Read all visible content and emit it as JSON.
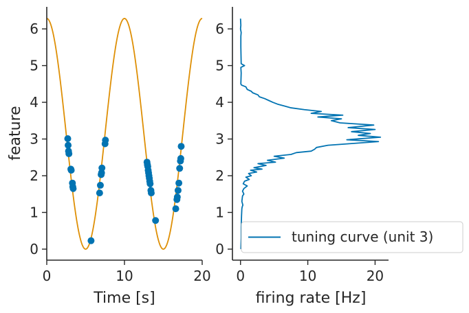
{
  "chart_data": [
    {
      "type": "scatter",
      "xlabel": "Time [s]",
      "ylabel": "feature",
      "xlim": [
        0,
        20
      ],
      "ylim": [
        -0.3,
        6.6
      ],
      "xticks": [
        0,
        10,
        20
      ],
      "yticks": [
        0,
        1,
        2,
        3,
        4,
        5,
        6
      ],
      "grid": false,
      "line_series": {
        "color": "#de8f05",
        "function": "pi*(1+cos(2*pi*t/10))",
        "x_range": [
          0,
          20
        ]
      },
      "scatter_series": {
        "color": "#0173b2",
        "points": [
          [
            2.7,
            3.01
          ],
          [
            2.75,
            2.83
          ],
          [
            2.8,
            2.67
          ],
          [
            2.85,
            2.6
          ],
          [
            3.1,
            2.18
          ],
          [
            3.15,
            2.15
          ],
          [
            3.3,
            1.8
          ],
          [
            3.35,
            1.7
          ],
          [
            3.4,
            1.65
          ],
          [
            5.7,
            0.23
          ],
          [
            6.8,
            1.53
          ],
          [
            6.9,
            1.74
          ],
          [
            7.0,
            2.03
          ],
          [
            7.05,
            2.08
          ],
          [
            7.1,
            2.21
          ],
          [
            7.5,
            2.87
          ],
          [
            7.55,
            2.97
          ],
          [
            12.9,
            2.37
          ],
          [
            12.95,
            2.3
          ],
          [
            13.0,
            2.25
          ],
          [
            13.05,
            2.15
          ],
          [
            13.1,
            2.08
          ],
          [
            13.15,
            2.0
          ],
          [
            13.2,
            1.93
          ],
          [
            13.25,
            1.85
          ],
          [
            13.3,
            1.78
          ],
          [
            13.4,
            1.6
          ],
          [
            13.45,
            1.53
          ],
          [
            14.0,
            0.78
          ],
          [
            16.6,
            1.1
          ],
          [
            16.75,
            1.35
          ],
          [
            16.8,
            1.42
          ],
          [
            16.9,
            1.6
          ],
          [
            17.0,
            1.8
          ],
          [
            17.1,
            2.2
          ],
          [
            17.2,
            2.4
          ],
          [
            17.25,
            2.47
          ],
          [
            17.3,
            2.8
          ]
        ]
      }
    },
    {
      "type": "line",
      "xlabel": "firing rate [Hz]",
      "ylabel": "",
      "xlim": [
        -1.2,
        22
      ],
      "ylim": [
        -0.3,
        6.6
      ],
      "xticks": [
        0,
        10,
        20
      ],
      "yticks": [
        0,
        1,
        2,
        3,
        4,
        5,
        6
      ],
      "grid": false,
      "legend_position": "lower-right",
      "series": [
        {
          "name": "tuning curve (unit 3)",
          "color": "#0173b2",
          "points": [
            [
              0.05,
              0.0
            ],
            [
              0.1,
              0.3
            ],
            [
              0.1,
              0.6
            ],
            [
              0.15,
              0.9
            ],
            [
              0.2,
              1.1
            ],
            [
              0.25,
              1.15
            ],
            [
              0.35,
              1.2
            ],
            [
              0.2,
              1.3
            ],
            [
              0.3,
              1.45
            ],
            [
              0.5,
              1.5
            ],
            [
              0.3,
              1.58
            ],
            [
              0.5,
              1.65
            ],
            [
              1.0,
              1.72
            ],
            [
              0.4,
              1.78
            ],
            [
              0.6,
              1.85
            ],
            [
              1.3,
              1.9
            ],
            [
              0.8,
              1.96
            ],
            [
              1.6,
              2.0
            ],
            [
              1.2,
              2.06
            ],
            [
              2.4,
              2.1
            ],
            [
              1.5,
              2.15
            ],
            [
              3.2,
              2.18
            ],
            [
              2.0,
              2.22
            ],
            [
              3.8,
              2.28
            ],
            [
              2.6,
              2.33
            ],
            [
              5.2,
              2.37
            ],
            [
              4.0,
              2.42
            ],
            [
              6.5,
              2.48
            ],
            [
              5.0,
              2.53
            ],
            [
              7.5,
              2.58
            ],
            [
              8.3,
              2.63
            ],
            [
              10.5,
              2.67
            ],
            [
              11.0,
              2.72
            ],
            [
              11.3,
              2.77
            ],
            [
              13.0,
              2.83
            ],
            [
              16.0,
              2.87
            ],
            [
              20.5,
              2.93
            ],
            [
              15.8,
              2.98
            ],
            [
              20.8,
              3.05
            ],
            [
              17.5,
              3.1
            ],
            [
              19.3,
              3.15
            ],
            [
              16.5,
              3.2
            ],
            [
              20.0,
              3.26
            ],
            [
              16.0,
              3.31
            ],
            [
              19.8,
              3.38
            ],
            [
              14.8,
              3.44
            ],
            [
              13.5,
              3.5
            ],
            [
              15.0,
              3.55
            ],
            [
              11.5,
              3.6
            ],
            [
              15.2,
              3.65
            ],
            [
              10.5,
              3.7
            ],
            [
              12.0,
              3.75
            ],
            [
              9.5,
              3.8
            ],
            [
              7.5,
              3.85
            ],
            [
              6.5,
              3.9
            ],
            [
              5.5,
              3.95
            ],
            [
              4.8,
              4.0
            ],
            [
              4.2,
              4.05
            ],
            [
              3.6,
              4.1
            ],
            [
              2.8,
              4.15
            ],
            [
              2.6,
              4.2
            ],
            [
              1.8,
              4.26
            ],
            [
              1.6,
              4.3
            ],
            [
              1.0,
              4.35
            ],
            [
              0.8,
              4.42
            ],
            [
              0.15,
              4.47
            ],
            [
              0.05,
              4.5
            ],
            [
              0.1,
              4.8
            ],
            [
              0.05,
              4.95
            ],
            [
              0.6,
              5.0
            ],
            [
              0.1,
              5.05
            ],
            [
              0.05,
              5.5
            ],
            [
              0.05,
              5.8
            ],
            [
              0.1,
              5.9
            ],
            [
              0.0,
              6.0
            ],
            [
              0.05,
              6.1
            ],
            [
              0.0,
              6.28
            ]
          ]
        }
      ]
    }
  ]
}
